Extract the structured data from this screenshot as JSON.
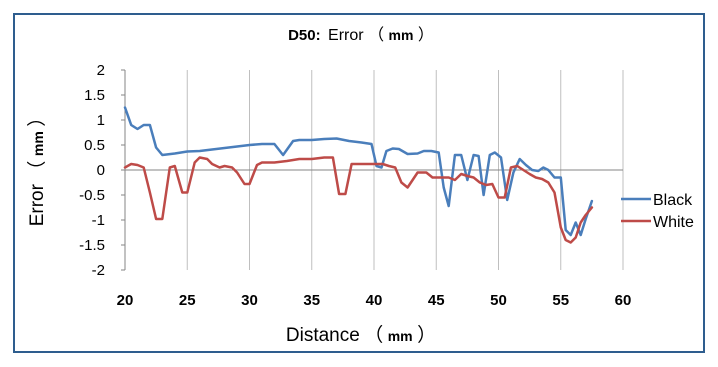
{
  "chart_data": {
    "type": "line",
    "title": {
      "prefix": "D50:",
      "main": "Error",
      "unit": "mm"
    },
    "xlabel": {
      "main": "Distance",
      "unit": "mm"
    },
    "ylabel": {
      "main": "Error",
      "unit": "mm"
    },
    "xlim": [
      20,
      60
    ],
    "ylim": [
      -2,
      2
    ],
    "x_ticks": [
      "20",
      "25",
      "30",
      "35",
      "40",
      "45",
      "50",
      "55",
      "60"
    ],
    "y_ticks": [
      "2",
      "1.5",
      "1",
      "0.5",
      "0",
      "-0.5",
      "-1",
      "-1.5",
      "-2"
    ],
    "grid": "vertical-major",
    "legend_position": "right",
    "series": [
      {
        "name": "Black",
        "color": "#4a7ebb",
        "x": [
          20,
          20.5,
          21,
          21.5,
          22,
          22.5,
          23,
          24,
          25,
          26,
          27,
          28,
          29,
          30,
          31,
          32,
          32.7,
          33.5,
          34,
          35,
          36,
          37,
          38,
          39,
          39.8,
          40.2,
          40.6,
          41,
          41.5,
          42,
          42.7,
          43.5,
          44,
          44.6,
          45.2,
          45.6,
          46,
          46.5,
          47,
          47.5,
          48,
          48.4,
          48.8,
          49.3,
          49.7,
          50.2,
          50.7,
          51.2,
          51.7,
          52.2,
          52.7,
          53.2,
          53.6,
          54,
          54.5,
          55,
          55.4,
          55.8,
          56.2,
          56.6,
          57,
          57.5
        ],
        "y": [
          1.25,
          0.9,
          0.82,
          0.9,
          0.9,
          0.45,
          0.3,
          0.33,
          0.37,
          0.38,
          0.41,
          0.44,
          0.47,
          0.5,
          0.52,
          0.52,
          0.3,
          0.58,
          0.6,
          0.6,
          0.62,
          0.63,
          0.58,
          0.55,
          0.52,
          0.08,
          0.05,
          0.38,
          0.43,
          0.42,
          0.32,
          0.33,
          0.38,
          0.38,
          0.35,
          -0.35,
          -0.72,
          0.3,
          0.3,
          -0.2,
          0.3,
          0.28,
          -0.5,
          0.3,
          0.35,
          0.25,
          -0.6,
          -0.05,
          0.22,
          0.1,
          0.0,
          -0.02,
          0.05,
          0.0,
          -0.15,
          -0.15,
          -1.2,
          -1.3,
          -1.05,
          -1.3,
          -0.98,
          -0.62
        ]
      },
      {
        "name": "White",
        "color": "#be4b48",
        "x": [
          20,
          20.5,
          21,
          21.5,
          22,
          22.5,
          23,
          23.6,
          24,
          24.6,
          25,
          25.6,
          26,
          26.6,
          27,
          27.6,
          28,
          28.6,
          29,
          29.6,
          30,
          30.6,
          31,
          32,
          33,
          34,
          35,
          36,
          36.7,
          37.2,
          37.7,
          38.2,
          39,
          40,
          40.7,
          41.2,
          41.7,
          42.2,
          42.7,
          43.5,
          44.2,
          44.7,
          45.2,
          45.6,
          46,
          46.5,
          47,
          47.5,
          48,
          48.5,
          49,
          49.5,
          50,
          50.5,
          51,
          51.5,
          52,
          52.5,
          53,
          53.5,
          54,
          54.5,
          55,
          55.4,
          55.8,
          56.2,
          56.6,
          57,
          57.5
        ],
        "y": [
          0.05,
          0.12,
          0.1,
          0.05,
          -0.45,
          -0.98,
          -0.98,
          0.05,
          0.08,
          -0.45,
          -0.45,
          0.15,
          0.25,
          0.22,
          0.12,
          0.05,
          0.08,
          0.05,
          -0.05,
          -0.28,
          -0.28,
          0.1,
          0.15,
          0.15,
          0.18,
          0.22,
          0.22,
          0.25,
          0.25,
          -0.48,
          -0.48,
          0.12,
          0.12,
          0.12,
          0.12,
          0.08,
          0.05,
          -0.25,
          -0.35,
          -0.05,
          -0.05,
          -0.15,
          -0.15,
          -0.15,
          -0.15,
          -0.2,
          -0.08,
          -0.12,
          -0.15,
          -0.25,
          -0.3,
          -0.28,
          -0.55,
          -0.55,
          0.05,
          0.08,
          0.0,
          -0.08,
          -0.15,
          -0.18,
          -0.25,
          -0.45,
          -1.15,
          -1.4,
          -1.45,
          -1.35,
          -1.05,
          -0.9,
          -0.75
        ]
      }
    ]
  }
}
